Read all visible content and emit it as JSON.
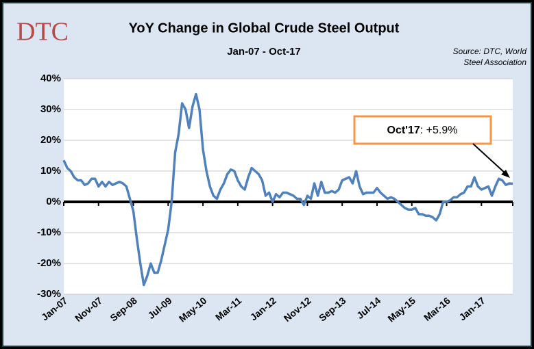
{
  "chart_data": {
    "type": "line",
    "logo": "DTC",
    "title": "YoY Change in Global Crude Steel Output",
    "subtitle": "Jan-07 - Oct-17",
    "source": [
      "Source: DTC, World",
      "Steel Association"
    ],
    "annotation": {
      "bold": "Oct'17",
      "rest": ": +5.9%"
    },
    "color": "#4f81bd",
    "grid": true,
    "ylim": [
      -30,
      40
    ],
    "yticks": [
      {
        "value": -30,
        "label": "-30%"
      },
      {
        "value": -20,
        "label": "-20%"
      },
      {
        "value": -10,
        "label": "-10%"
      },
      {
        "value": 0,
        "label": "0%"
      },
      {
        "value": 10,
        "label": "10%"
      },
      {
        "value": 20,
        "label": "20%"
      },
      {
        "value": 30,
        "label": "30%"
      },
      {
        "value": 40,
        "label": "40%"
      }
    ],
    "categories": [
      "Jan-07",
      null,
      null,
      null,
      null,
      null,
      null,
      null,
      null,
      null,
      "Nov-07",
      null,
      null,
      null,
      null,
      null,
      null,
      null,
      null,
      null,
      "Sep-08",
      null,
      null,
      null,
      null,
      null,
      null,
      null,
      null,
      null,
      "Jul-09",
      null,
      null,
      null,
      null,
      null,
      null,
      null,
      null,
      null,
      "May-10",
      null,
      null,
      null,
      null,
      null,
      null,
      null,
      null,
      null,
      "Mar-11",
      null,
      null,
      null,
      null,
      null,
      null,
      null,
      null,
      null,
      "Jan-12",
      null,
      null,
      null,
      null,
      null,
      null,
      null,
      null,
      null,
      "Nov-12",
      null,
      null,
      null,
      null,
      null,
      null,
      null,
      null,
      null,
      "Sep-13",
      null,
      null,
      null,
      null,
      null,
      null,
      null,
      null,
      null,
      "Jul-14",
      null,
      null,
      null,
      null,
      null,
      null,
      null,
      null,
      null,
      "May-15",
      null,
      null,
      null,
      null,
      null,
      null,
      null,
      null,
      null,
      "Mar-16",
      null,
      null,
      null,
      null,
      null,
      null,
      null,
      null,
      null,
      "Jan-17",
      null,
      null,
      null,
      null,
      null,
      null,
      null,
      null,
      null
    ],
    "values": [
      13.5,
      11,
      10,
      8,
      7,
      7,
      5.5,
      6,
      7.5,
      7.5,
      5,
      6.5,
      5,
      6.5,
      5.5,
      6,
      6.5,
      6,
      5,
      1,
      -3,
      -12,
      -20,
      -27,
      -24,
      -20,
      -23,
      -23,
      -19,
      -14,
      -9,
      0,
      16,
      22,
      32,
      30,
      24,
      31,
      35,
      30,
      17,
      10,
      5,
      2,
      1,
      4,
      6,
      9,
      10.5,
      10,
      7,
      5,
      4,
      8,
      11,
      10,
      9,
      7,
      2,
      3,
      0,
      2.5,
      1.5,
      3,
      3,
      2.5,
      2,
      1,
      1,
      -1,
      2,
      1,
      6,
      2,
      6.5,
      3,
      3,
      3.5,
      3,
      4,
      7,
      7.5,
      8,
      6,
      10,
      5,
      2.5,
      3,
      3,
      3,
      4.5,
      3,
      2,
      1,
      1.5,
      1,
      0,
      -1,
      -2,
      -2.5,
      -2.5,
      -2,
      -4,
      -4,
      -4.5,
      -4.5,
      -5,
      -6,
      -4,
      0,
      0,
      0.5,
      1.5,
      1.5,
      2.5,
      3,
      5,
      5,
      8,
      5,
      4,
      4.5,
      5,
      2,
      5,
      7.5,
      7,
      5.5,
      6,
      5.9
    ]
  }
}
